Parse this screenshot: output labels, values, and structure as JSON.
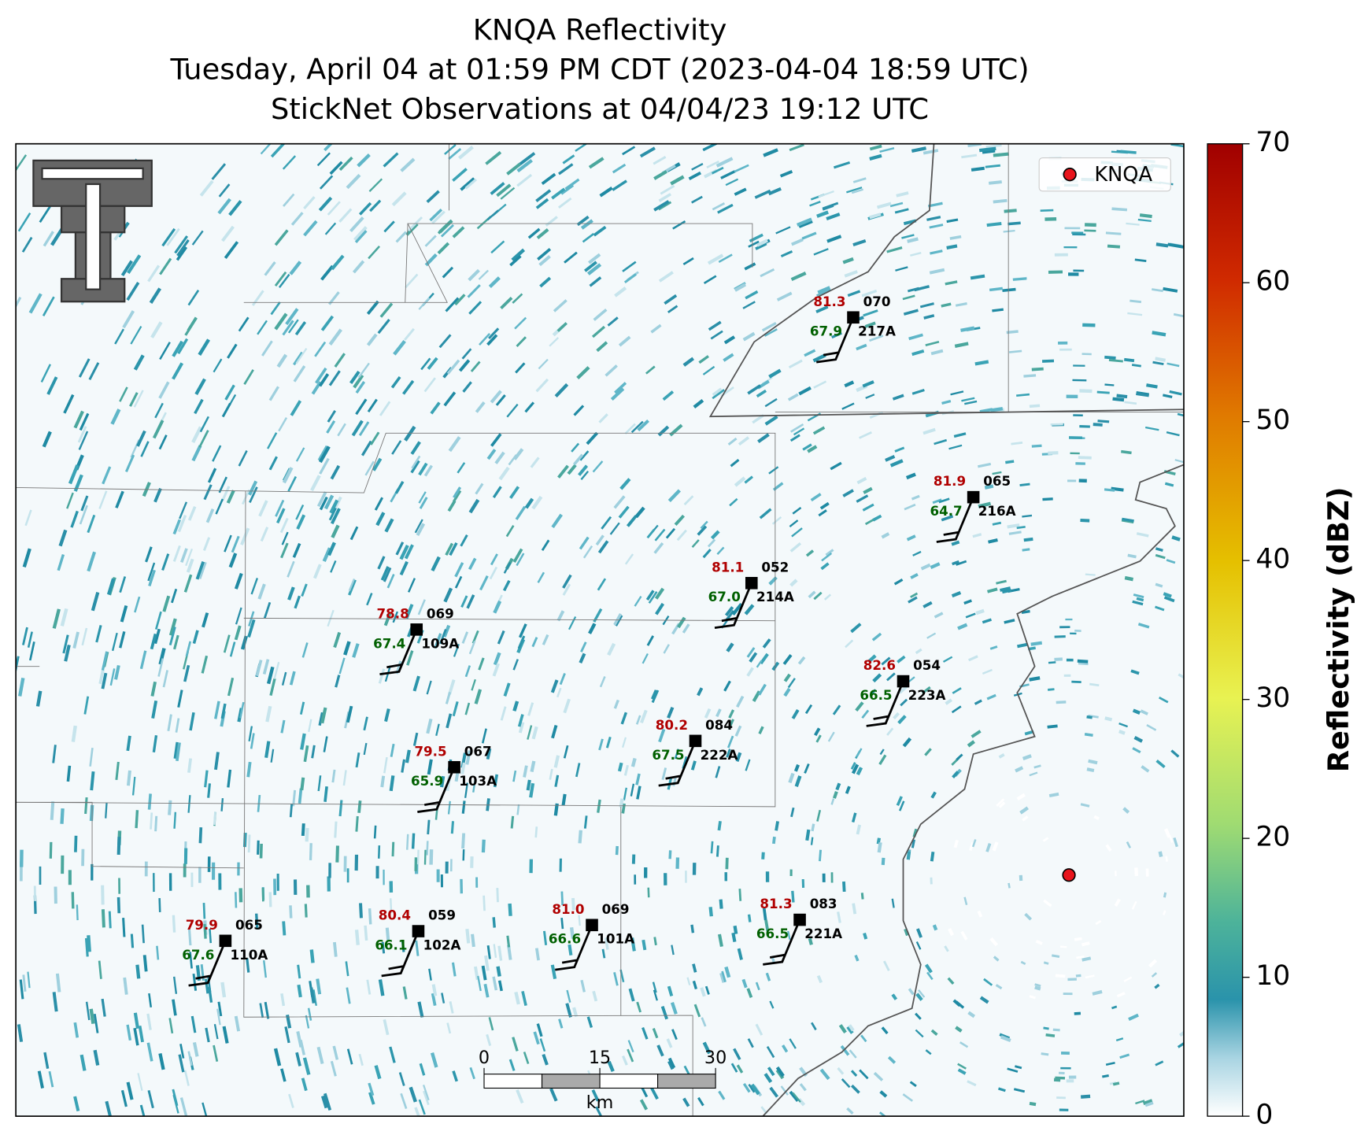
{
  "title": {
    "lines": [
      "KNQA Reflectivity",
      "Tuesday, April 04 at 01:59 PM CDT (2023-04-04 18:59 UTC)",
      "StickNet Observations at 04/04/23 19:12 UTC"
    ]
  },
  "legend": {
    "label": "KNQA"
  },
  "stations": [
    {
      "temperature": "81.3",
      "dewpoint": "67.9",
      "pressure": "070",
      "id": "217A"
    },
    {
      "temperature": "81.9",
      "dewpoint": "64.7",
      "pressure": "065",
      "id": "216A"
    },
    {
      "temperature": "81.1",
      "dewpoint": "67.0",
      "pressure": "052",
      "id": "214A"
    },
    {
      "temperature": "78.8",
      "dewpoint": "67.4",
      "pressure": "069",
      "id": "109A"
    },
    {
      "temperature": "82.6",
      "dewpoint": "66.5",
      "pressure": "054",
      "id": "223A"
    },
    {
      "temperature": "80.2",
      "dewpoint": "67.5",
      "pressure": "084",
      "id": "222A"
    },
    {
      "temperature": "79.5",
      "dewpoint": "65.9",
      "pressure": "067",
      "id": "103A"
    },
    {
      "temperature": "79.9",
      "dewpoint": "67.6",
      "pressure": "065",
      "id": "110A"
    },
    {
      "temperature": "80.4",
      "dewpoint": "66.1",
      "pressure": "059",
      "id": "102A"
    },
    {
      "temperature": "81.0",
      "dewpoint": "66.6",
      "pressure": "069",
      "id": "101A"
    },
    {
      "temperature": "81.3",
      "dewpoint": "66.5",
      "pressure": "083",
      "id": "221A"
    }
  ],
  "colorbar": {
    "label": "Reflectivity (dBZ)",
    "range": [
      0,
      70
    ],
    "ticks": [
      0,
      10,
      20,
      30,
      40,
      50,
      60,
      70
    ]
  },
  "scale_bar": {
    "ticks": [
      0,
      15,
      30
    ],
    "unit": "km"
  }
}
